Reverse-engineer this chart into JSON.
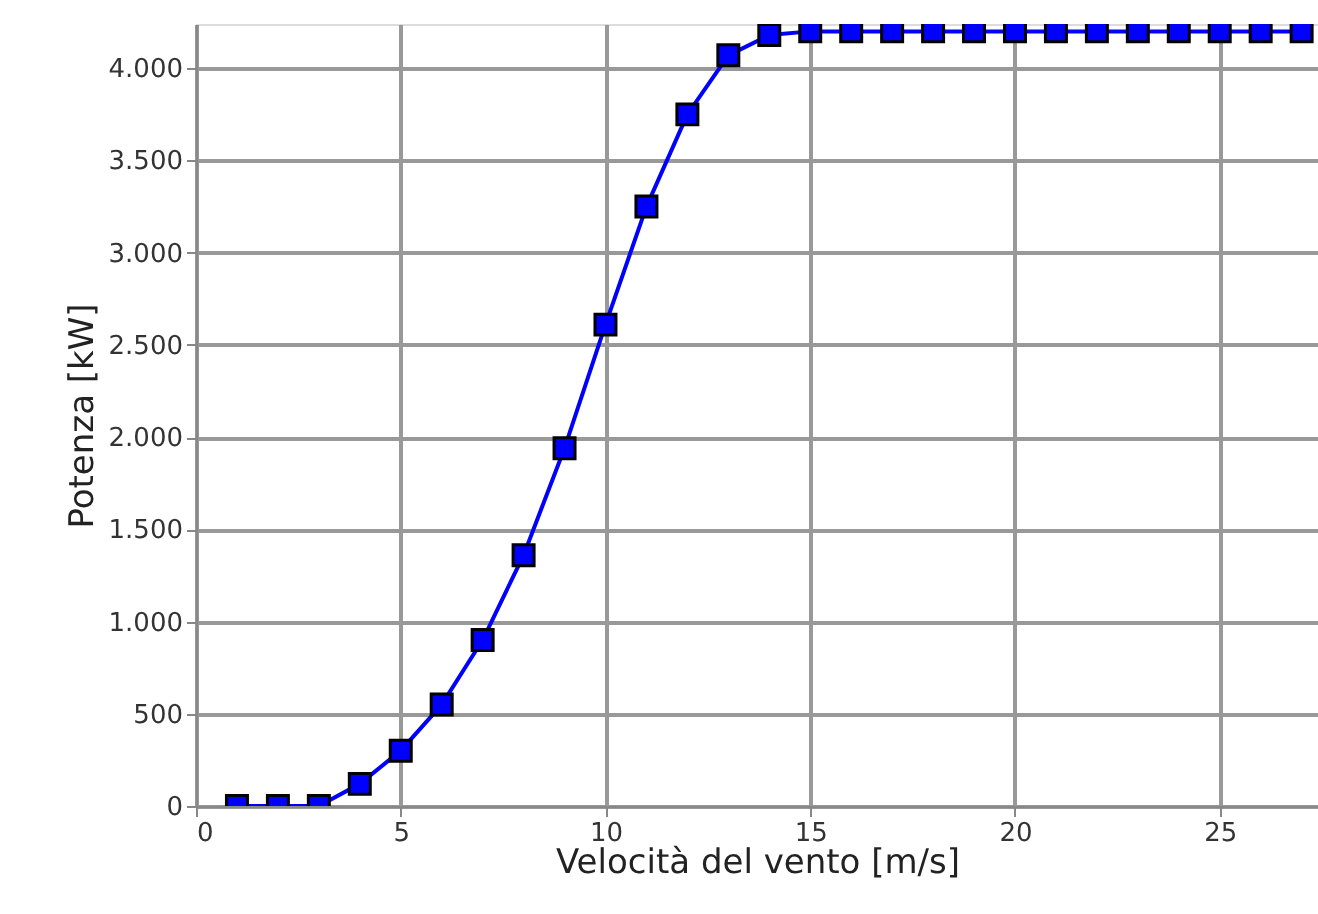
{
  "chart_data": {
    "type": "line",
    "xlabel": "Velocità del vento [m/s]",
    "ylabel": "Potenza [kW]",
    "x": [
      1,
      2,
      3,
      4,
      5,
      6,
      7,
      8,
      9,
      10,
      11,
      12,
      13,
      14,
      15,
      16,
      17,
      18,
      19,
      20,
      21,
      22,
      23,
      24,
      25,
      26,
      27
    ],
    "series": [
      {
        "color": "#0000ff",
        "values": [
          0,
          0,
          0,
          120,
          300,
          550,
          900,
          1360,
          1940,
          2610,
          3250,
          3750,
          4070,
          4180,
          4200,
          4200,
          4200,
          4200,
          4200,
          4200,
          4200,
          4200,
          4200,
          4200,
          4200,
          4200,
          4200
        ]
      }
    ],
    "xlim": [
      0,
      27.4
    ],
    "xticks": [
      0,
      5,
      10,
      15,
      20,
      25
    ],
    "ylim": [
      0,
      4240
    ],
    "yticks": [
      0,
      500,
      {
        "value": 1000,
        "label": "1.000"
      },
      {
        "value": 1500,
        "label": "1.500"
      },
      {
        "value": 2000,
        "label": "2.000"
      },
      {
        "value": 2500,
        "label": "2.500"
      },
      {
        "value": 3000,
        "label": "3.000"
      },
      {
        "value": 3500,
        "label": "3.500"
      },
      {
        "value": 4000,
        "label": "4.000"
      }
    ],
    "grid": true,
    "marker": "square",
    "line_style": "solid"
  }
}
